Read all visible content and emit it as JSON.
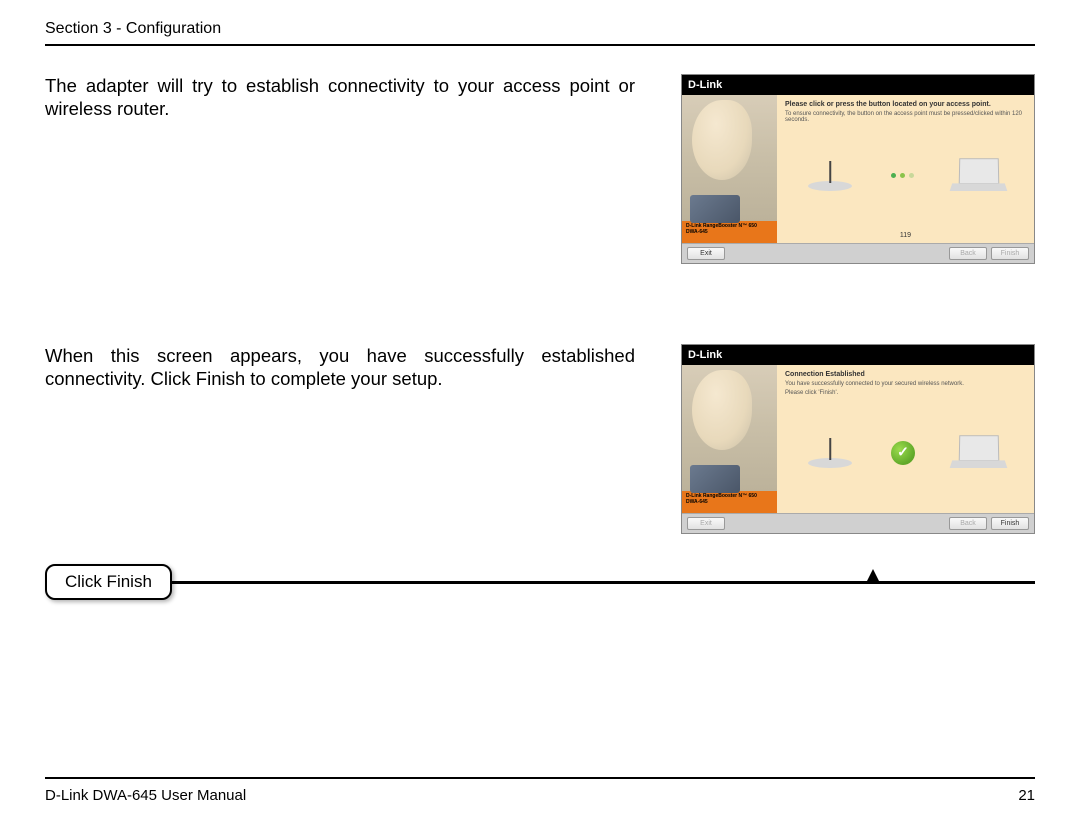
{
  "header": {
    "section_label": "Section 3 - Configuration"
  },
  "step1": {
    "text": "The adapter will try to establish connectivity to your access point or wireless router.",
    "screenshot": {
      "brand": "D-Link",
      "msg_title": "Please click or press the button located on your access point.",
      "msg_sub": "To ensure connectivity, the button on the access point must be pressed/clicked within 120 seconds.",
      "product_line1": "D-Link RangeBooster N™ 650",
      "product_line2": "DWA-645",
      "countdown": "119",
      "btn_exit": "Exit",
      "btn_back": "Back",
      "btn_next": "Finish"
    }
  },
  "step2": {
    "text": "When this screen appears, you have successfully established connectivity. Click Finish to complete your setup.",
    "screenshot": {
      "brand": "D-Link",
      "msg_title": "Connection Established",
      "msg_sub1": "You have successfully connected to your secured wireless network.",
      "msg_sub2": "Please click 'Finish'.",
      "product_line1": "D-Link RangeBooster N™ 650",
      "product_line2": "DWA-645",
      "btn_exit": "Exit",
      "btn_back": "Back",
      "btn_next": "Finish"
    }
  },
  "callout": {
    "label": "Click Finish"
  },
  "footer": {
    "manual": "D-Link DWA-645 User Manual",
    "page": "21"
  },
  "colors": {
    "orange": "#e8761a",
    "panel_bg": "#fbe7c0",
    "titlebar": "#000000"
  }
}
